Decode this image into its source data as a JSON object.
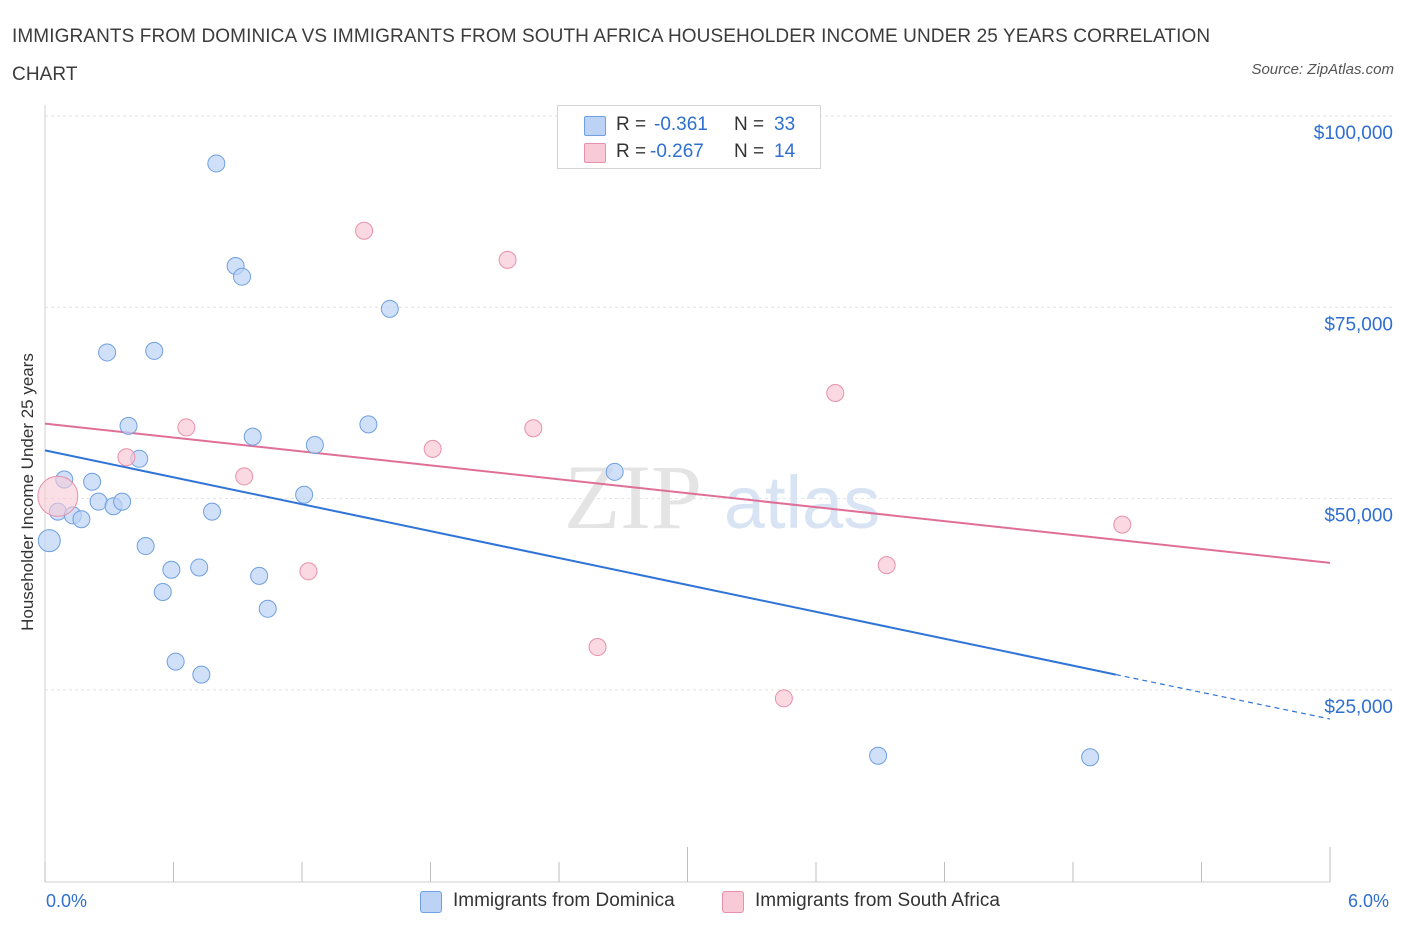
{
  "title": "IMMIGRANTS FROM DOMINICA VS IMMIGRANTS FROM SOUTH AFRICA HOUSEHOLDER INCOME UNDER 25 YEARS CORRELATION CHART",
  "source": "Source: ZipAtlas.com",
  "watermark": {
    "zip": "ZIP",
    "atlas": "atlas"
  },
  "legend": {
    "r_label": "R =",
    "n_label": "N =",
    "series": [
      {
        "r": "-0.361",
        "n": "33"
      },
      {
        "r": "-0.267",
        "n": "14"
      }
    ]
  },
  "chart_data": {
    "type": "scatter",
    "title": "IMMIGRANTS FROM DOMINICA VS IMMIGRANTS FROM SOUTH AFRICA HOUSEHOLDER INCOME UNDER 25 YEARS CORRELATION CHART",
    "xlabel": "",
    "ylabel": "Householder Income Under 25 years",
    "xlim": [
      0,
      6
    ],
    "ylim": [
      0,
      100000
    ],
    "x_tick_labels": [
      "0.0%",
      "6.0%"
    ],
    "y_ticks": [
      25000,
      50000,
      75000,
      100000
    ],
    "y_tick_labels": [
      "$25,000",
      "$50,000",
      "$75,000",
      "$100,000"
    ],
    "grid": true,
    "series": [
      {
        "name": "Immigrants from Dominica",
        "color": "#6fa0e0",
        "fill": "#bcd3f5",
        "line_color": "#2f74d6",
        "points": [
          [
            0.02,
            44500
          ],
          [
            0.06,
            48300
          ],
          [
            0.09,
            52500
          ],
          [
            0.13,
            47800
          ],
          [
            0.17,
            47300
          ],
          [
            0.22,
            52200
          ],
          [
            0.25,
            49600
          ],
          [
            0.29,
            69100
          ],
          [
            0.32,
            49000
          ],
          [
            0.36,
            49600
          ],
          [
            0.39,
            59500
          ],
          [
            0.44,
            55200
          ],
          [
            0.47,
            43800
          ],
          [
            0.51,
            69300
          ],
          [
            0.55,
            37800
          ],
          [
            0.59,
            40700
          ],
          [
            0.61,
            28700
          ],
          [
            0.72,
            41000
          ],
          [
            0.73,
            27000
          ],
          [
            0.78,
            48300
          ],
          [
            0.8,
            93800
          ],
          [
            0.89,
            80400
          ],
          [
            0.92,
            79000
          ],
          [
            0.97,
            58100
          ],
          [
            1.0,
            39900
          ],
          [
            1.04,
            35600
          ],
          [
            1.21,
            50500
          ],
          [
            1.26,
            57000
          ],
          [
            1.51,
            59700
          ],
          [
            1.61,
            74800
          ],
          [
            2.66,
            53500
          ],
          [
            3.89,
            16400
          ],
          [
            4.88,
            16200
          ]
        ],
        "trend": {
          "x0": 0.0,
          "y0": 56300,
          "x1": 5.0,
          "y1": 27000,
          "dashed_to_x": 6.0,
          "dashed_to_y": 21200
        }
      },
      {
        "name": "Immigrants from South Africa",
        "color": "#e890ab",
        "fill": "#f8c9d7",
        "line_color": "#e06f97",
        "points": [
          [
            0.06,
            50300
          ],
          [
            0.38,
            55400
          ],
          [
            0.66,
            59300
          ],
          [
            0.93,
            52900
          ],
          [
            1.23,
            40500
          ],
          [
            1.49,
            85000
          ],
          [
            1.81,
            56500
          ],
          [
            2.16,
            81200
          ],
          [
            2.28,
            59200
          ],
          [
            2.58,
            30600
          ],
          [
            3.45,
            23900
          ],
          [
            3.69,
            63800
          ],
          [
            3.93,
            41300
          ],
          [
            5.03,
            46600
          ]
        ],
        "trend": {
          "x0": 0.0,
          "y0": 59800,
          "x1": 6.0,
          "y1": 41600
        }
      }
    ]
  }
}
